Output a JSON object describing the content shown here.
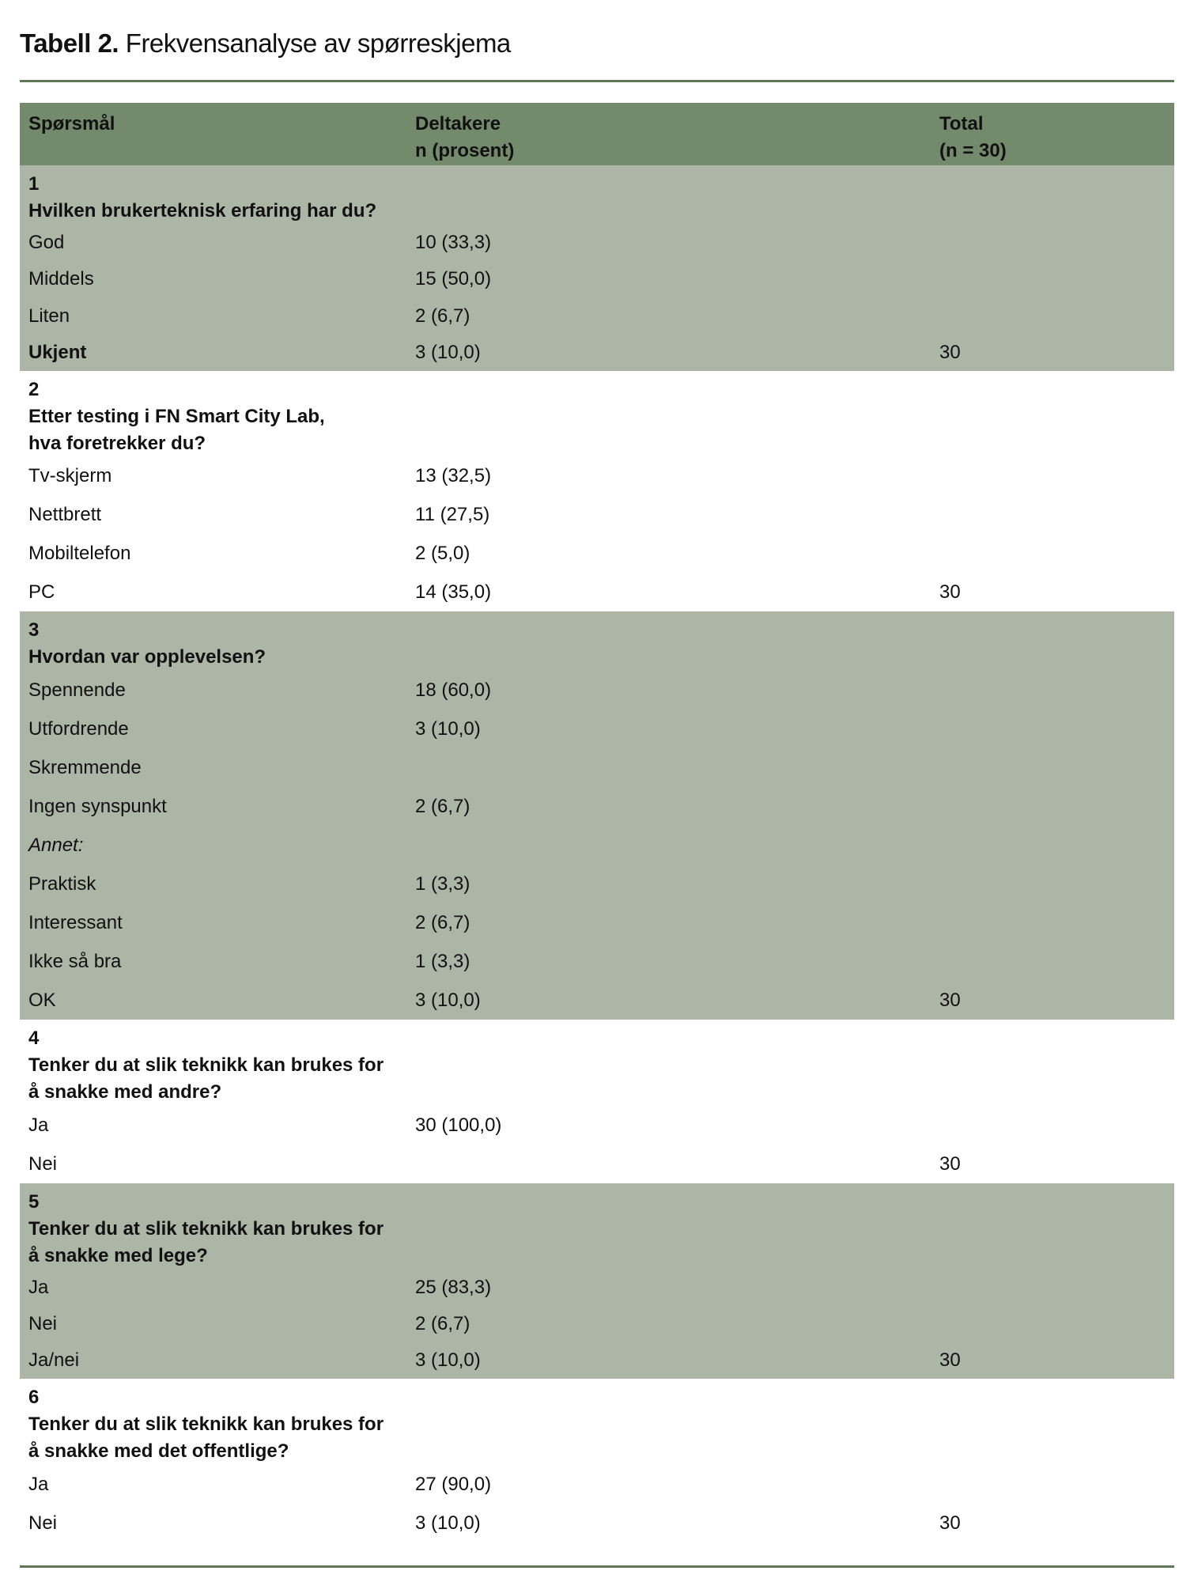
{
  "title": {
    "bold": "Tabell 2.",
    "rest": "Frekvensanalyse av spørreskjema"
  },
  "header": {
    "col1": [
      "Spørsmål"
    ],
    "col2": [
      "Deltakere",
      "n (prosent)"
    ],
    "col3": [
      "Total",
      "(n = 30)"
    ]
  },
  "colors": {
    "header_bg": "#748a6c",
    "shaded_bg": "#adb5a6",
    "rule": "#5f7756"
  },
  "sections": [
    {
      "number": "1",
      "question": [
        "Hvilken brukerteknisk erfaring har du?"
      ],
      "shaded": true,
      "items": [
        {
          "label": "God",
          "value": "10 (33,3)",
          "total": ""
        },
        {
          "label": "Middels",
          "value": "15 (50,0)",
          "total": ""
        },
        {
          "label": "Liten",
          "value": "2 (6,7)",
          "total": ""
        },
        {
          "label": "Ukjent",
          "value": "3 (10,0)",
          "total": "30",
          "bold": true
        }
      ]
    },
    {
      "number": "2",
      "question": [
        "Etter testing i FN Smart City Lab,",
        "hva foretrekker du?"
      ],
      "shaded": false,
      "items": [
        {
          "label": "Tv-skjerm",
          "value": "13 (32,5)",
          "total": ""
        },
        {
          "label": "Nettbrett",
          "value": "11 (27,5)",
          "total": ""
        },
        {
          "label": "Mobiltelefon",
          "value": "2 (5,0)",
          "total": ""
        },
        {
          "label": "PC",
          "value": "14 (35,0)",
          "total": "30"
        }
      ]
    },
    {
      "number": "3",
      "question": [
        "Hvordan var opplevelsen?"
      ],
      "shaded": true,
      "items": [
        {
          "label": "Spennende",
          "value": "18 (60,0)",
          "total": ""
        },
        {
          "label": "Utfordrende",
          "value": "3 (10,0)",
          "total": ""
        },
        {
          "label": "Skremmende",
          "value": "",
          "total": ""
        },
        {
          "label": "Ingen synspunkt",
          "value": "2 (6,7)",
          "total": ""
        },
        {
          "label": "Annet:",
          "value": "",
          "total": "",
          "italic": true
        },
        {
          "label": "Praktisk",
          "value": "1 (3,3)",
          "total": ""
        },
        {
          "label": "Interessant",
          "value": "2 (6,7)",
          "total": ""
        },
        {
          "label": "Ikke så bra",
          "value": "1 (3,3)",
          "total": ""
        },
        {
          "label": "OK",
          "value": "3 (10,0)",
          "total": "30"
        }
      ]
    },
    {
      "number": "4",
      "question": [
        "Tenker du at slik teknikk kan brukes for",
        "å snakke med andre?"
      ],
      "shaded": false,
      "items": [
        {
          "label": "Ja",
          "value": "30 (100,0)",
          "total": ""
        },
        {
          "label": "Nei",
          "value": "",
          "total": "30"
        }
      ]
    },
    {
      "number": "5",
      "question": [
        "Tenker du at slik teknikk kan brukes for",
        "å snakke med lege?"
      ],
      "shaded": true,
      "items": [
        {
          "label": "Ja",
          "value": "25 (83,3)",
          "total": ""
        },
        {
          "label": "Nei",
          "value": "2 (6,7)",
          "total": ""
        },
        {
          "label": "Ja/nei",
          "value": "3 (10,0)",
          "total": "30"
        }
      ]
    },
    {
      "number": "6",
      "question": [
        "Tenker du at slik teknikk kan brukes for",
        "å snakke med det offentlige?"
      ],
      "shaded": false,
      "items": [
        {
          "label": "Ja",
          "value": "27 (90,0)",
          "total": ""
        },
        {
          "label": "Nei",
          "value": "3 (10,0)",
          "total": "30"
        }
      ]
    }
  ]
}
